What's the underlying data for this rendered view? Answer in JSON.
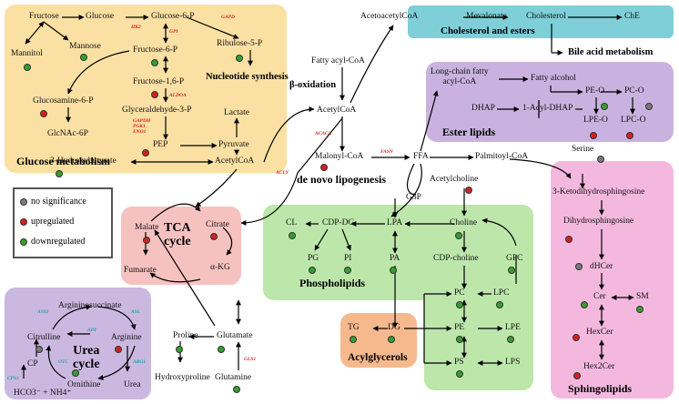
{
  "colors": {
    "glucose_bg": "#fbe0a3",
    "cholesterol_bg": "#7ecfd8",
    "ester_bg": "#c9b2df",
    "tca_bg": "#f6c2c0",
    "phospholipid_bg": "#bde6ab",
    "urea_bg": "#cbb8e0",
    "acylglycerol_bg": "#f6b98d",
    "sphingo_bg": "#f4b8de",
    "upregulated": "#d42020",
    "downregulated": "#34a02c",
    "no_significance": "#7a7a7a"
  },
  "titles": {
    "glucose": "Glucose metabolism",
    "cholesterol": "Cholesterol and esters",
    "ester": "Ester lipids",
    "tca": "TCA\ncycle",
    "phospholipids": "Phospholipids",
    "urea": "Urea\ncycle",
    "acylglycerols": "Acylglycerols",
    "sphingolipids": "Sphingolipids",
    "nucleotide": "Nucleotide synthesis",
    "bile": "Bile acid metabolism",
    "beta_ox": "β-oxidation",
    "denovo": "de novo lipogenesis"
  },
  "legend": {
    "none": "no significance",
    "up": "upregulated",
    "down": "downregulated"
  },
  "nodes": {
    "fructose": "Fructose",
    "glucose": "Glucose",
    "g6p": "Glucose-6-P",
    "mannose": "Mannose",
    "mannitol": "Mannitol",
    "f6p": "Fructose-6-P",
    "ribulose": "Ribulose-5-P",
    "f16p": "Fructose-1,6-P",
    "glucosamine": "Glucosamine-6-P",
    "gap": "Glyceraldehyde-3-P",
    "glcnac": "GlcNAc-6P",
    "lactate": "Lactate",
    "pep": "PEP",
    "pyruvate": "Pyruvate",
    "hydroxybutyrate": "3-Hydroxybutyrate",
    "acetylcoa_low": "AcetylCoA",
    "fatty_acylcoa": "Fatty acyl-CoA",
    "acetylcoa_mid": "AcetylCoA",
    "acetoacetyl": "AcetoacetylCoA",
    "mevalonate": "Mevalonate",
    "cholesterol": "Cholesterol",
    "che": "ChE",
    "malonyl": "Malonyl-CoA",
    "ffa": "FFA",
    "palmitoyl": "Palmitoyl-CoA",
    "longchain": "Long-chain fatty\nacyl-CoA",
    "fatty_alcohol": "Fatty alcohol",
    "dhap": "DHAP",
    "acyl_dhap": "1-Acyl-DHAP",
    "peo": "PE-O",
    "pco": "PC-O",
    "lpeo": "LPE-O",
    "lpco": "LPC-O",
    "serine": "Serine",
    "keto": "3-Ketodihydrosphingosine",
    "dihydro": "Dihydrosphingosine",
    "dhcer": "dHCer",
    "cer": "Cer",
    "sm": "SM",
    "hexcer": "HexCer",
    "hex2cer": "Hex2Cer",
    "malate": "Malate",
    "citrate": "Citrate",
    "fumarate": "Fumarate",
    "akg": "α-KG",
    "acetylcholine": "Acetylcholine",
    "g3p": "G3P",
    "cl": "CL",
    "cdpdg": "CDP-DG",
    "lpa": "LPA",
    "choline": "Choline",
    "pg": "PG",
    "pi": "PI",
    "pa": "PA",
    "cdpcholine": "CDP-choline",
    "gpc": "GPC",
    "pc": "PC",
    "lpc": "LPC",
    "pe": "PE",
    "lpe": "LPE",
    "ps": "PS",
    "lps": "LPS",
    "tg": "TG",
    "dg": "DG",
    "argsucc": "Argininosuccinate",
    "citrulline": "Citrulline",
    "arginine": "Arginine",
    "cp": "CP",
    "ornithine": "Ornithine",
    "urea": "Urea",
    "hco3": "HCO3⁻ + NH4⁺",
    "proline": "Proline",
    "glutamate": "Glutamate",
    "hydroxyproline": "Hydroxyproline",
    "glutamine": "Glutamine"
  },
  "enzymes": {
    "hk2": "HK2",
    "gapd": "GAPD",
    "gpi": "GPI",
    "aldoa": "ALDOA",
    "gapdh": "GAPDH\nPGK1\nENO1",
    "acly": "ACLY",
    "acaca": "ACACA",
    "fasn": "FASN",
    "ass1": "ASS1",
    "asl": "ASL",
    "adi": "ADI",
    "otc": "OTC",
    "arg1": "ARG1",
    "cps1": "CPS1",
    "gls1": "GLS1"
  }
}
